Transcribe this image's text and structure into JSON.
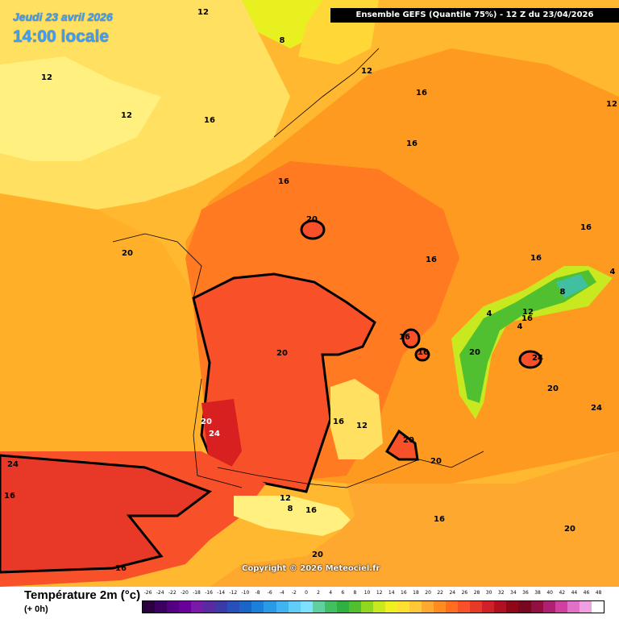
{
  "header": {
    "date": "Jeudi 23 avril 2026",
    "time": "14:00 locale",
    "model": "Ensemble GEFS  (Quantile 75%) - 12 Z du 23/04/2026"
  },
  "map": {
    "copyright": "Copyright © 2026 Meteociel.fr",
    "isotherm_labels": [
      "12",
      "8",
      "12",
      "12",
      "12",
      "16",
      "16",
      "16",
      "16",
      "12",
      "16",
      "20",
      "20",
      "16",
      "16",
      "4",
      "4",
      "8",
      "12",
      "16",
      "4",
      "20",
      "16",
      "16",
      "24",
      "20",
      "20",
      "20",
      "24",
      "16",
      "12",
      "20",
      "20",
      "24",
      "24",
      "16",
      "12",
      "8",
      "16",
      "16",
      "20",
      "20",
      "16"
    ]
  },
  "legend": {
    "title": "Température 2m (°c)",
    "subtitle": "(+ 0h)",
    "ticks": [
      "-26",
      "-24",
      "-22",
      "-20",
      "-18",
      "-16",
      "-14",
      "-12",
      "-10",
      "-8",
      "-6",
      "-4",
      "-2",
      "0",
      "2",
      "4",
      "6",
      "8",
      "10",
      "12",
      "14",
      "16",
      "18",
      "20",
      "22",
      "24",
      "26",
      "28",
      "30",
      "32",
      "34",
      "36",
      "38",
      "40",
      "42",
      "44",
      "46",
      "48"
    ],
    "colors": [
      "#2a0040",
      "#3c0060",
      "#520080",
      "#6a009a",
      "#7a1aa8",
      "#5a2aa0",
      "#3a3aa8",
      "#2850b8",
      "#1a66c8",
      "#1a80d8",
      "#2a9ae6",
      "#40b4f0",
      "#60ccf8",
      "#80e0ff",
      "#60d0a0",
      "#40c060",
      "#30b040",
      "#50c030",
      "#90d820",
      "#c8e820",
      "#f0f020",
      "#ffe030",
      "#ffc838",
      "#ffa830",
      "#ff8c20",
      "#ff6e20",
      "#f85028",
      "#e83828",
      "#d02028",
      "#b01020",
      "#900818",
      "#780820",
      "#901040",
      "#b02070",
      "#d040a0",
      "#e070c8",
      "#f0a0e0",
      "#ffffff"
    ]
  }
}
